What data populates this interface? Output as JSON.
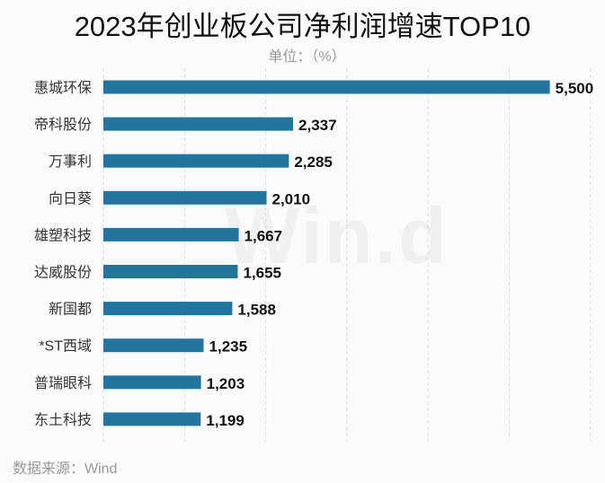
{
  "title": "2023年创业板公司净利润增速TOP10",
  "unit": "单位：（%）",
  "source": "数据来源：Wind",
  "watermark": "Win.d",
  "colors": {
    "bar": "#2474a0",
    "grid": "#dddddd",
    "label": "#333333",
    "value": "#111111"
  },
  "chart_data": {
    "type": "bar",
    "orientation": "horizontal",
    "title": "2023年创业板公司净利润增速TOP10",
    "subtitle": "单位：（%）",
    "categories": [
      "惠城环保",
      "帝科股份",
      "万事利",
      "向日葵",
      "雄塑科技",
      "达威股份",
      "新国都",
      "*ST西域",
      "普瑞眼科",
      "东土科技"
    ],
    "values": [
      5500,
      2337,
      2285,
      2010,
      1667,
      1655,
      1588,
      1235,
      1203,
      1199
    ],
    "value_labels": [
      "5,500",
      "2,337",
      "2,285",
      "2,010",
      "1,667",
      "1,655",
      "1,588",
      "1,235",
      "1,203",
      "1,199"
    ],
    "xlim": [
      0,
      6000
    ],
    "grid": "vertical dashed, every 1000",
    "xaxis_ticks_shown": false
  }
}
